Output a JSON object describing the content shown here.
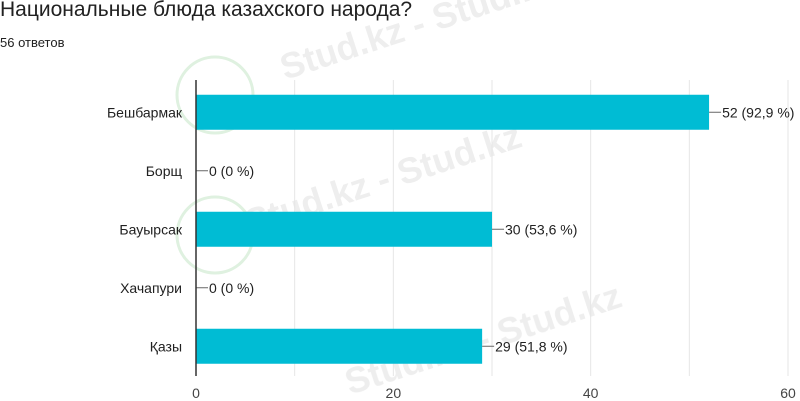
{
  "header": {
    "title": "Национальные блюда казахского народа?",
    "subtitle": "56 ответов"
  },
  "watermark": {
    "text": "Stud.kz - Stud.kz"
  },
  "chart_data": {
    "type": "bar",
    "orientation": "horizontal",
    "categories": [
      "Бешбармак",
      "Борщ",
      "Бауырсак",
      "Хачапури",
      "Қазы"
    ],
    "values": [
      52,
      0,
      30,
      0,
      29
    ],
    "labels": [
      "52 (92,9 %)",
      "0 (0 %)",
      "30 (53,6 %)",
      "0 (0 %)",
      "29 (51,8 %)"
    ],
    "xlim": [
      0,
      60
    ],
    "xticks": [
      0,
      20,
      40,
      60
    ],
    "grid": true,
    "legend": "none",
    "bar_color": "#00bcd4"
  }
}
